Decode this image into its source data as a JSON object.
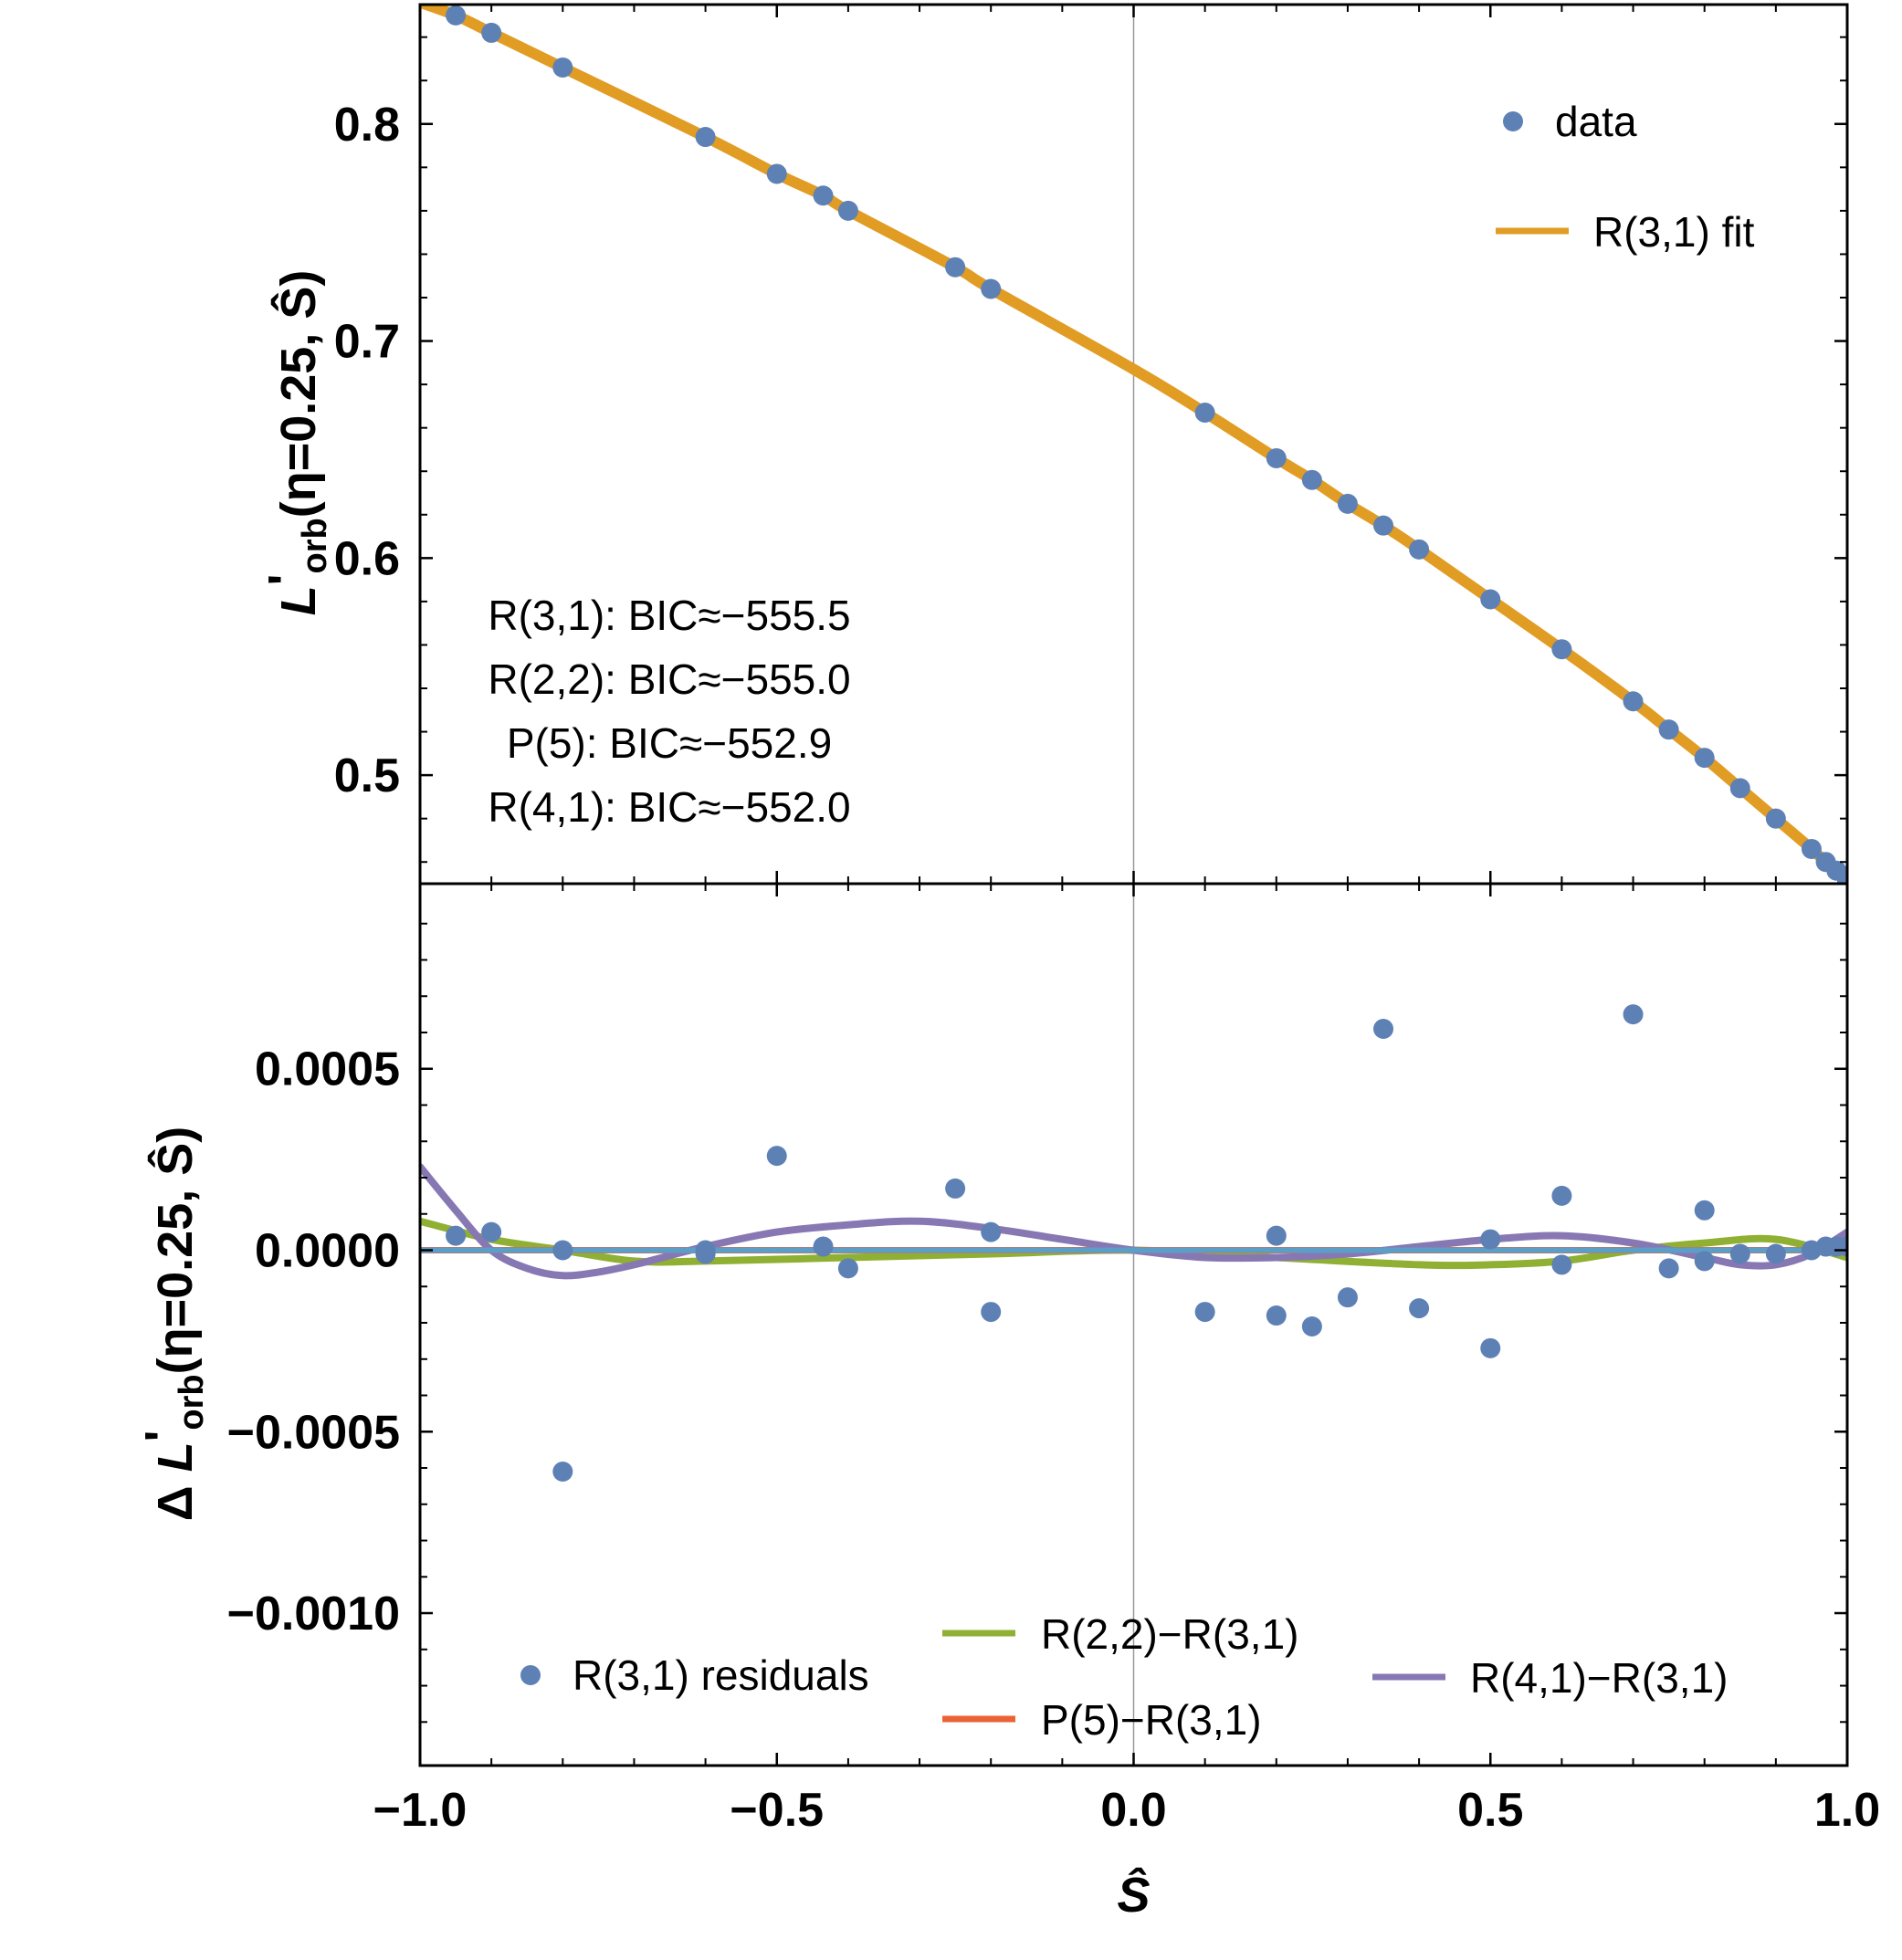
{
  "colors": {
    "data": "#5E81B5",
    "fit": "#E19C24",
    "r22": "#8FB032",
    "p5": "#EB6235",
    "r41": "#8778B3",
    "r31_ref": "#5D9EC7",
    "axis": "#000000",
    "zero_line": "#999999"
  },
  "chart_data": [
    {
      "type": "scatter",
      "panel": "top",
      "xlabel": "Ŝ",
      "ylabel": "L'orb(η=0.25, Ŝ)",
      "ylabel_parts": {
        "main": "L",
        "prime": "'",
        "sub": "orb",
        "rest": "(η=0.25, Ŝ)"
      },
      "xlim": [
        -1.0,
        1.0
      ],
      "ylim": [
        0.45,
        0.855
      ],
      "yticks": [
        0.5,
        0.6,
        0.7,
        0.8
      ],
      "ytick_labels": [
        "0.5",
        "0.6",
        "0.7",
        "0.8"
      ],
      "legend": [
        {
          "label": "data",
          "kind": "marker",
          "color_key": "data"
        },
        {
          "label": "R(3,1) fit",
          "kind": "line",
          "color_key": "fit"
        }
      ],
      "legend_position": "top-right",
      "annotations": [
        "R(3,1): BIC≈−555.5",
        "R(2,2): BIC≈−555.0",
        "P(5): BIC≈−552.9",
        "R(4,1): BIC≈−552.0"
      ],
      "series": [
        {
          "name": "data",
          "kind": "scatter",
          "color_key": "data",
          "x": [
            -0.95,
            -0.9,
            -0.8,
            -0.6,
            -0.5,
            -0.435,
            -0.4,
            -0.25,
            -0.2,
            0.1,
            0.2,
            0.25,
            0.3,
            0.35,
            0.4,
            0.5,
            0.6,
            0.7,
            0.75,
            0.8,
            0.85,
            0.9,
            0.95,
            0.97,
            0.985,
            1.0
          ],
          "y": [
            0.85,
            0.842,
            0.826,
            0.794,
            0.777,
            0.767,
            0.76,
            0.734,
            0.724,
            0.667,
            0.646,
            0.636,
            0.625,
            0.615,
            0.604,
            0.581,
            0.558,
            0.534,
            0.521,
            0.508,
            0.494,
            0.48,
            0.466,
            0.46,
            0.456,
            0.451
          ]
        },
        {
          "name": "R(3,1) fit",
          "kind": "line",
          "color_key": "fit",
          "x": [
            -1.0,
            -0.95,
            -0.9,
            -0.8,
            -0.6,
            -0.5,
            -0.435,
            -0.4,
            -0.25,
            -0.2,
            0.0,
            0.1,
            0.2,
            0.25,
            0.3,
            0.35,
            0.4,
            0.5,
            0.6,
            0.7,
            0.75,
            0.8,
            0.85,
            0.9,
            0.95,
            0.97,
            0.985,
            1.0
          ],
          "y": [
            0.856,
            0.85,
            0.842,
            0.826,
            0.794,
            0.777,
            0.767,
            0.76,
            0.734,
            0.724,
            0.687,
            0.667,
            0.646,
            0.636,
            0.625,
            0.615,
            0.604,
            0.581,
            0.558,
            0.534,
            0.521,
            0.508,
            0.494,
            0.48,
            0.466,
            0.46,
            0.456,
            0.451
          ]
        }
      ]
    },
    {
      "type": "scatter",
      "panel": "bottom",
      "xlabel": "Ŝ",
      "ylabel": "Δ L'orb(η=0.25, Ŝ)",
      "ylabel_parts": {
        "pre": "Δ ",
        "main": "L",
        "prime": "'",
        "sub": "orb",
        "rest": "(η=0.25, Ŝ)"
      },
      "xlim": [
        -1.0,
        1.0
      ],
      "ylim": [
        -0.00142,
        0.00101
      ],
      "xticks": [
        -1.0,
        -0.5,
        0.0,
        0.5,
        1.0
      ],
      "xtick_labels": [
        "−1.0",
        "−0.5",
        "0.0",
        "0.5",
        "1.0"
      ],
      "yticks": [
        0.0005,
        0.0,
        -0.0005,
        -0.001
      ],
      "ytick_labels": [
        "0.0005",
        "0.0000",
        "−0.0005",
        "−0.0010"
      ],
      "legend": [
        {
          "label": "R(3,1) residuals",
          "kind": "marker",
          "color_key": "data"
        },
        {
          "label": "R(2,2)−R(3,1)",
          "kind": "line",
          "color_key": "r22"
        },
        {
          "label": "P(5)−R(3,1)",
          "kind": "line",
          "color_key": "p5"
        },
        {
          "label": "R(4,1)−R(3,1)",
          "kind": "line",
          "color_key": "r41"
        }
      ],
      "legend_position": "bottom",
      "series": [
        {
          "name": "R(3,1) residuals",
          "kind": "scatter",
          "color_key": "data",
          "x": [
            -0.95,
            -0.9,
            -0.8,
            -0.8,
            -0.6,
            -0.6,
            -0.5,
            -0.435,
            -0.4,
            -0.25,
            -0.2,
            -0.2,
            0.1,
            0.2,
            0.2,
            0.25,
            0.3,
            0.35,
            0.4,
            0.5,
            0.5,
            0.6,
            0.6,
            0.7,
            0.75,
            0.8,
            0.8,
            0.85,
            0.9,
            0.95,
            0.97,
            0.985,
            1.0
          ],
          "y": [
            4e-05,
            5e-05,
            0.0,
            -0.00061,
            -1e-05,
            0.0,
            0.00026,
            1e-05,
            -5e-05,
            0.00017,
            5e-05,
            -0.00017,
            -0.00017,
            4e-05,
            -0.00018,
            -0.00021,
            -0.00013,
            0.00061,
            -0.00016,
            3e-05,
            -0.00027,
            0.00015,
            -4e-05,
            0.00065,
            -5e-05,
            0.00011,
            -3e-05,
            -1e-05,
            -1e-05,
            0.0,
            1e-05,
            1e-05,
            1e-05
          ]
        },
        {
          "name": "R(2,2)−R(3,1)",
          "kind": "line",
          "color_key": "r22",
          "x": [
            -1.0,
            -0.9,
            -0.8,
            -0.7,
            -0.6,
            -0.4,
            -0.2,
            0.0,
            0.2,
            0.4,
            0.5,
            0.6,
            0.7,
            0.8,
            0.9,
            1.0
          ],
          "y": [
            8e-05,
            3e-05,
            0.0,
            -3e-05,
            -3e-05,
            -2e-05,
            -1e-05,
            0.0,
            -2e-05,
            -4e-05,
            -4e-05,
            -3e-05,
            0.0,
            2e-05,
            3e-05,
            -2e-05
          ]
        },
        {
          "name": "P(5)−R(3,1)",
          "kind": "line",
          "color_key": "p5",
          "x": [
            -1.0,
            -0.5,
            0.0,
            0.5,
            1.0
          ],
          "y": [
            0.0,
            0.0,
            0.0,
            0.0,
            0.0
          ]
        },
        {
          "name": "R(4,1)−R(3,1)",
          "kind": "line",
          "color_key": "r41",
          "x": [
            -1.0,
            -0.95,
            -0.9,
            -0.85,
            -0.8,
            -0.75,
            -0.7,
            -0.6,
            -0.5,
            -0.4,
            -0.3,
            -0.2,
            -0.1,
            0.0,
            0.1,
            0.2,
            0.3,
            0.4,
            0.5,
            0.6,
            0.7,
            0.8,
            0.85,
            0.9,
            0.95,
            1.0
          ],
          "y": [
            0.00023,
            0.00011,
            0.0,
            -5e-05,
            -7e-05,
            -6e-05,
            -4e-05,
            1e-05,
            5e-05,
            7e-05,
            8e-05,
            6e-05,
            3e-05,
            0.0,
            -2e-05,
            -2e-05,
            -1e-05,
            1e-05,
            3e-05,
            4e-05,
            2e-05,
            -2e-05,
            -4e-05,
            -4e-05,
            -1e-05,
            5e-05
          ]
        },
        {
          "name": "R(3,1)",
          "kind": "line",
          "color_key": "r31_ref",
          "x": [
            -1.0,
            -0.5,
            0.0,
            0.5,
            1.0
          ],
          "y": [
            0.0,
            0.0,
            0.0,
            0.0,
            0.0
          ]
        }
      ]
    }
  ]
}
